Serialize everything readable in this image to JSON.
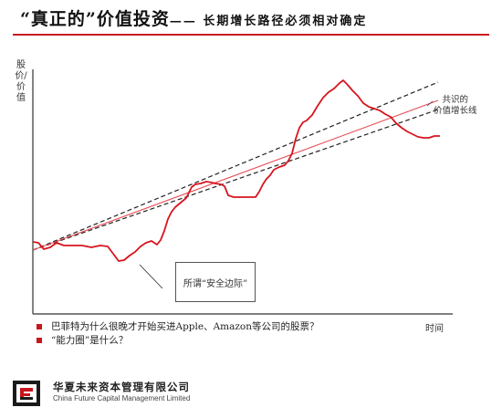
{
  "header": {
    "title": "“真正的”价值投资",
    "subtitle": "—— 长期增长路径必须相对确定"
  },
  "diagram": {
    "y_axis_label": "股价/价值",
    "x_axis_label": "时间",
    "trend_label_line1": "共识的",
    "trend_label_line2": "价值增长线",
    "callout": "所谓“安全边际”",
    "colors": {
      "price_line": "#d7141e",
      "trend_line": "#e6505a",
      "band_lines": "#222222",
      "accent": "#c8161d"
    }
  },
  "bullets": [
    "巴菲特为什么很晚才开始买进Apple、Amazon等公司的股票？",
    "“能力圈”是什么？"
  ],
  "footer": {
    "company_cn": "华夏未来资本管理有限公司",
    "company_en": "China Future Capital Management Limited"
  }
}
